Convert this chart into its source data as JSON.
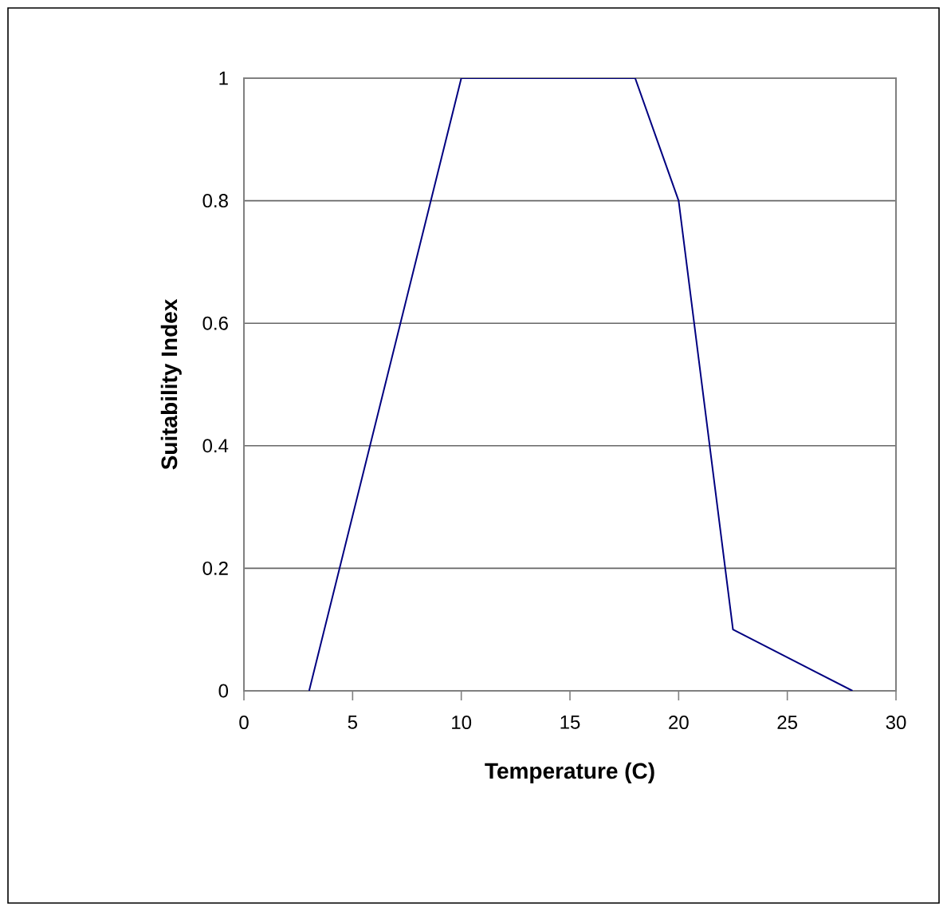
{
  "chart_data": {
    "type": "line",
    "xlabel": "Temperature (C)",
    "ylabel": "Suitability Index",
    "x": [
      3,
      10,
      18,
      19,
      20,
      22.5,
      28
    ],
    "series": [
      {
        "color": "#000080",
        "values": [
          0,
          1,
          1,
          0.9,
          0.8,
          0.1,
          0
        ]
      }
    ],
    "xlim": [
      0,
      30
    ],
    "xticks": [
      0,
      5,
      10,
      15,
      20,
      25,
      30
    ],
    "ylim": [
      0,
      1
    ],
    "yticks": [
      0,
      0.2,
      0.4,
      0.6,
      0.8,
      1
    ],
    "grid": "y",
    "marker": "none",
    "line_style": "solid"
  }
}
